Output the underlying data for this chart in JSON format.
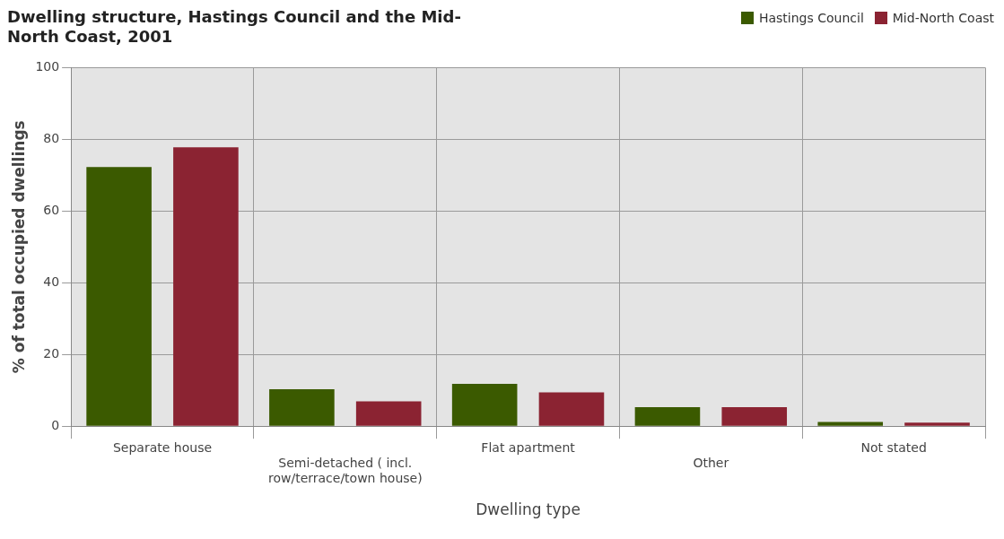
{
  "chart_data": {
    "type": "bar",
    "title": "Dwelling structure, Hastings Council and the Mid-North Coast, 2001",
    "xlabel": "Dwelling type",
    "ylabel": "% of total occupied dwellings",
    "categories": [
      "Separate house",
      "Semi-detached ( incl. row/terrace/town house)",
      "Flat apartment",
      "Other",
      "Not stated"
    ],
    "series": [
      {
        "name": "Hastings Council",
        "color": "#3b5a00",
        "values": [
          72.3,
          10.3,
          11.8,
          5.3,
          1.2
        ]
      },
      {
        "name": "Mid-North Coast",
        "color": "#8b2332",
        "values": [
          77.8,
          6.9,
          9.4,
          5.3,
          1.0
        ]
      }
    ],
    "ylim": [
      0,
      100
    ],
    "yticks": [
      0,
      20,
      40,
      60,
      80,
      100
    ],
    "grid": true,
    "legend": "top right"
  }
}
